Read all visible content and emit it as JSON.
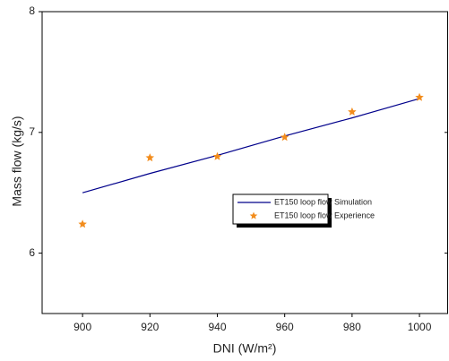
{
  "chart_data": {
    "type": "line",
    "x_label": "DNI (W/m²)",
    "y_label": "Mass flow (kg/s)",
    "x": [
      900,
      920,
      940,
      960,
      980,
      1000
    ],
    "series": [
      {
        "name": "ET150 loop flow Simulation",
        "color": "#00008b",
        "style": "line",
        "values": [
          6.5,
          6.66,
          6.81,
          6.97,
          7.12,
          7.28
        ]
      },
      {
        "name": "ET150 loop flow Experience",
        "color": "#f28c1c",
        "style": "star",
        "values": [
          6.24,
          6.79,
          6.8,
          6.96,
          7.17,
          7.29
        ]
      }
    ],
    "xlim": [
      888,
      1008.5
    ],
    "ylim": [
      5.5,
      8
    ],
    "xticks": [
      900,
      920,
      940,
      960,
      980,
      1000
    ],
    "yticks": [
      6,
      7,
      8
    ],
    "grid": false
  }
}
